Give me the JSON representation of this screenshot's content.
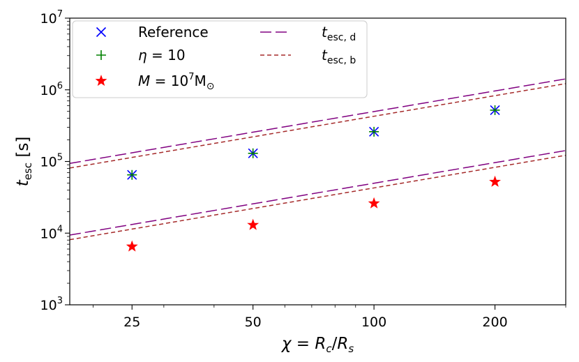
{
  "chart_data": {
    "type": "scatter",
    "title": "",
    "x_scale": "log",
    "y_scale": "log",
    "xlim": [
      17.5,
      300
    ],
    "ylim": [
      1000,
      10000000
    ],
    "xlabel": {
      "main": "χ = R",
      "sub1": "c",
      "mid": "/R",
      "sub2": "s"
    },
    "ylabel": {
      "main": "t",
      "sub": "esc",
      "unit": " [s]"
    },
    "x_ticks": [
      25,
      50,
      100,
      200
    ],
    "x_tick_labels": [
      "25",
      "50",
      "100",
      "200"
    ],
    "y_ticks": [
      1000,
      10000,
      100000,
      1000000,
      10000000
    ],
    "y_tick_labels": [
      {
        "base": "10",
        "exp": "3"
      },
      {
        "base": "10",
        "exp": "4"
      },
      {
        "base": "10",
        "exp": "5"
      },
      {
        "base": "10",
        "exp": "6"
      },
      {
        "base": "10",
        "exp": "7"
      }
    ],
    "grid": false,
    "legend_position": "top-left",
    "series": [
      {
        "name": "Reference",
        "kind": "points",
        "marker": "x",
        "color": "#0000ff",
        "x": [
          25,
          50,
          100,
          200
        ],
        "y": [
          65000,
          130000,
          260000,
          520000
        ]
      },
      {
        "name": "η = 10",
        "kind": "points",
        "marker": "plus",
        "color": "#008000",
        "x": [
          25,
          50,
          100,
          200
        ],
        "y": [
          65000,
          130000,
          260000,
          520000
        ]
      },
      {
        "name": "M = 10⁷M⊙",
        "kind": "points",
        "marker": "star",
        "color": "#ff0000",
        "x": [
          25,
          50,
          100,
          200
        ],
        "y": [
          6500,
          13000,
          26000,
          52000
        ]
      },
      {
        "name": "t_esc,d",
        "kind": "line",
        "dash": "long",
        "color": "#800080",
        "segments": [
          {
            "x": [
              17.5,
              300
            ],
            "y": [
              94000,
              1420000
            ]
          },
          {
            "x": [
              17.5,
              300
            ],
            "y": [
              9400,
              142000
            ]
          }
        ]
      },
      {
        "name": "t_esc,b",
        "kind": "line",
        "dash": "short",
        "color": "#a52a2a",
        "segments": [
          {
            "x": [
              17.5,
              300
            ],
            "y": [
              81000,
              1220000
            ]
          },
          {
            "x": [
              17.5,
              300
            ],
            "y": [
              8100,
              122000
            ]
          }
        ]
      }
    ],
    "legend": [
      {
        "series": 0,
        "label": "Reference",
        "type": "text"
      },
      {
        "series": 1,
        "label_parts": [
          {
            "t": "η",
            "italic": true
          },
          {
            "t": " = 10"
          }
        ],
        "type": "rich"
      },
      {
        "series": 2,
        "label_parts": [
          {
            "t": "M",
            "italic": true
          },
          {
            "t": " = 10"
          },
          {
            "t": "7",
            "sup": true
          },
          {
            "t": "M"
          },
          {
            "t": "⊙",
            "sub": true
          }
        ],
        "type": "rich"
      },
      {
        "series": 3,
        "label_parts": [
          {
            "t": "t",
            "italic": true
          },
          {
            "t": "esc, d",
            "sub": true
          }
        ],
        "type": "rich"
      },
      {
        "series": 4,
        "label_parts": [
          {
            "t": "t",
            "italic": true
          },
          {
            "t": "esc, b",
            "sub": true
          }
        ],
        "type": "rich"
      }
    ]
  }
}
